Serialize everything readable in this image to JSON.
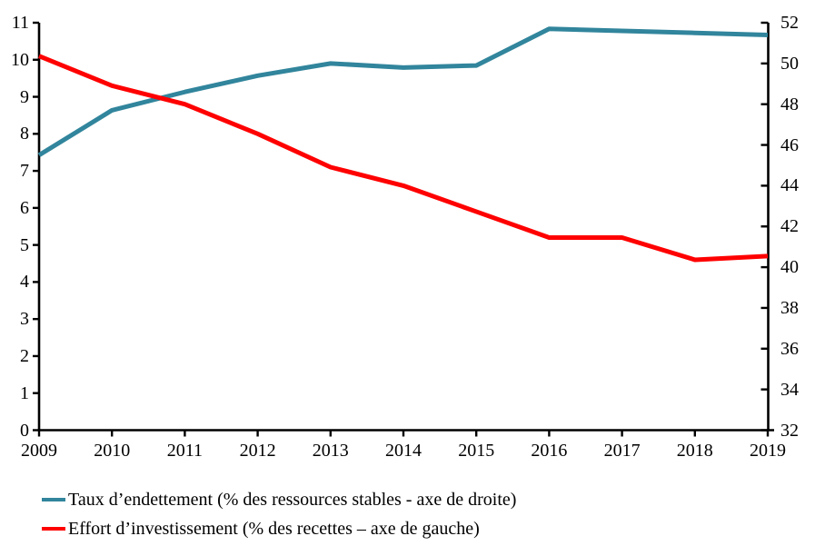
{
  "chart_data": {
    "type": "line",
    "x": [
      2009,
      2010,
      2011,
      2012,
      2013,
      2014,
      2015,
      2016,
      2017,
      2018,
      2019
    ],
    "series": [
      {
        "id": "taux-endettement",
        "name": "Taux d’endettement (% des ressources stables - axe de droite)",
        "axis": "right",
        "color": "#31859C",
        "values": [
          45.5,
          47.7,
          48.6,
          49.4,
          50.0,
          49.8,
          49.9,
          51.7,
          51.6,
          51.5,
          51.4
        ]
      },
      {
        "id": "effort-investissement",
        "name": "Effort d’investissement (% des recettes – axe de gauche)",
        "axis": "left",
        "color": "#FF0000",
        "values": [
          10.1,
          9.3,
          8.8,
          8.0,
          7.1,
          6.6,
          5.9,
          5.2,
          5.2,
          4.6,
          4.7
        ]
      }
    ],
    "title": "",
    "xlabel": "",
    "ylabel_left": "",
    "ylabel_right": "",
    "left_axis": {
      "min": 0,
      "max": 11,
      "step": 1,
      "tick_labels": [
        "0",
        "1",
        "2",
        "3",
        "4",
        "5",
        "6",
        "7",
        "8",
        "9",
        "10",
        "11"
      ]
    },
    "right_axis": {
      "min": 32,
      "max": 52,
      "step": 2,
      "tick_labels": [
        "32",
        "34",
        "36",
        "38",
        "40",
        "42",
        "44",
        "46",
        "48",
        "50",
        "52"
      ]
    },
    "x_tick_labels": [
      "2009",
      "2010",
      "2011",
      "2012",
      "2013",
      "2014",
      "2015",
      "2016",
      "2017",
      "2018",
      "2019"
    ],
    "grid": false,
    "legend_position": "bottom-left",
    "axis_color": "#000000"
  },
  "legend": {
    "items": [
      {
        "label": "Taux d’endettement (% des ressources stables - axe de droite)",
        "color": "#31859C"
      },
      {
        "label": "Effort d’investissement (% des recettes – axe de gauche)",
        "color": "#FF0000"
      }
    ]
  }
}
